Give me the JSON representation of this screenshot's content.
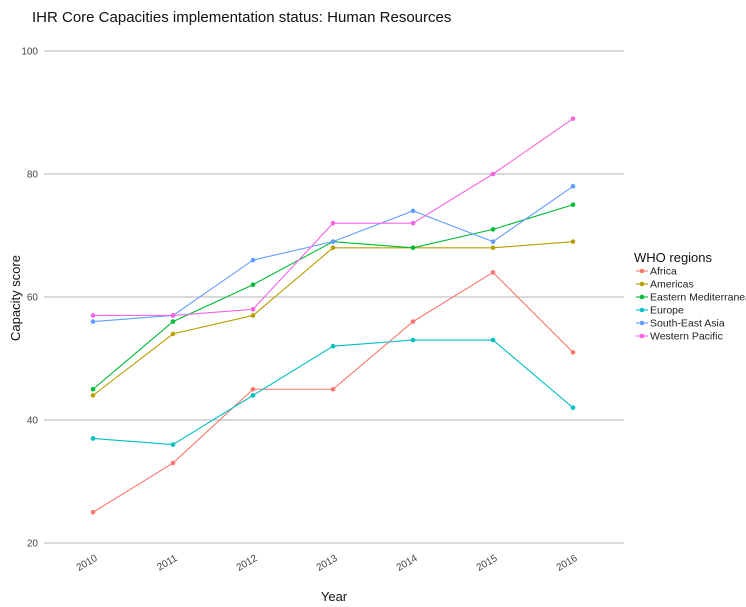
{
  "chart_data": {
    "type": "line",
    "title": "IHR Core Capacities implementation status: Human Resources",
    "xlabel": "Year",
    "ylabel": "Capacity score",
    "categories": [
      "2010",
      "2011",
      "2012",
      "2013",
      "2014",
      "2015",
      "2016"
    ],
    "ylim": [
      20,
      100
    ],
    "yticks": [
      20,
      40,
      60,
      80,
      100
    ],
    "grid": "horizontal",
    "legend": {
      "title": "WHO regions",
      "position": "right"
    },
    "series": [
      {
        "name": "Africa",
        "color": "#F8766D",
        "values": [
          25,
          33,
          45,
          45,
          56,
          64,
          51
        ]
      },
      {
        "name": "Americas",
        "color": "#B79F00",
        "values": [
          44,
          54,
          57,
          68,
          68,
          68,
          69
        ]
      },
      {
        "name": "Eastern Mediterranean",
        "color": "#00BA38",
        "values": [
          45,
          56,
          62,
          69,
          68,
          71,
          75
        ]
      },
      {
        "name": "Europe",
        "color": "#00BFC4",
        "values": [
          37,
          36,
          44,
          52,
          53,
          53,
          42
        ]
      },
      {
        "name": "South-East Asia",
        "color": "#619CFF",
        "values": [
          56,
          57,
          66,
          69,
          74,
          69,
          78
        ]
      },
      {
        "name": "Western Pacific",
        "color": "#F564E3",
        "values": [
          57,
          57,
          58,
          72,
          72,
          80,
          89
        ]
      }
    ]
  }
}
